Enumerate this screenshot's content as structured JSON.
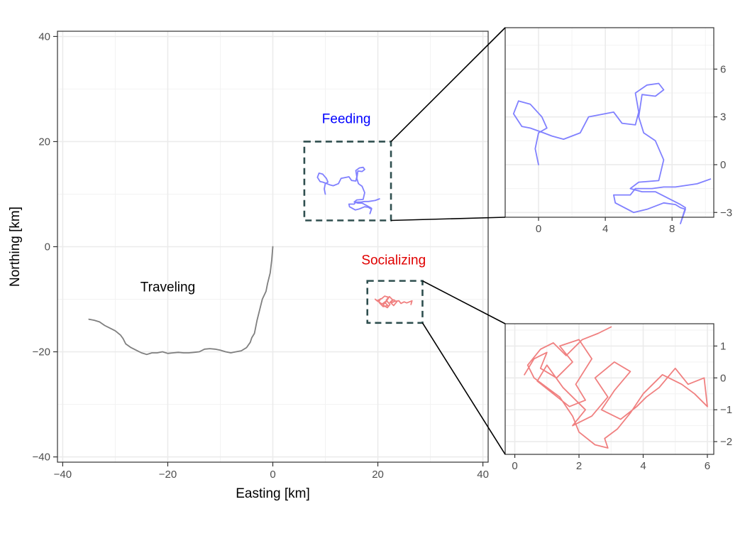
{
  "chart_data": [
    {
      "type": "line",
      "panel": "main",
      "xlabel": "Easting [km]",
      "ylabel": "Northing [km]",
      "xlim": [
        -41,
        41
      ],
      "ylim": [
        -41,
        41
      ],
      "x_ticks": [
        -40,
        -20,
        0,
        20,
        40
      ],
      "y_ticks": [
        -40,
        -20,
        0,
        20,
        40
      ],
      "x_tick_labels": [
        "−40",
        "−20",
        "0",
        "20",
        "40"
      ],
      "y_tick_labels": [
        "−40",
        "−20",
        "0",
        "20",
        "40"
      ],
      "grid": true,
      "annotations": [
        {
          "text": "Traveling",
          "x": -20,
          "y": -8.5,
          "color": "#000000"
        },
        {
          "text": "Feeding",
          "x": 14,
          "y": 23.5,
          "color": "#0000ff"
        },
        {
          "text": "Socializing",
          "x": 23,
          "y": -3.4,
          "color": "#e00000"
        }
      ],
      "zoom_boxes": [
        {
          "x0": 6,
          "x1": 22.5,
          "y0": 5,
          "y1": 20,
          "color": "#2f4f4f"
        },
        {
          "x0": 18,
          "x1": 28.5,
          "y0": -14.5,
          "y1": -6.5,
          "color": "#2f4f4f"
        }
      ],
      "series": [
        {
          "color": "#7f7f7f",
          "x": [
            0,
            -0.2,
            -0.5,
            -1.0,
            -1.3,
            -2.0,
            -2.5,
            -3.0,
            -3.3,
            -3.5,
            -4.0,
            -4.3,
            -5.0,
            -6.0,
            -7.0,
            -8.0,
            -9.0,
            -10.0,
            -11.0,
            -12.0,
            -13.0,
            -14.0,
            -15.0,
            -16.0,
            -17.0,
            -18.0,
            -19.0,
            -20.0,
            -21.0,
            -22.0,
            -23.0,
            -24.0,
            -25.0,
            -26.0,
            -27.0,
            -28.0,
            -28.5,
            -29.0,
            -30.0,
            -31.0,
            -32.0,
            -33.0,
            -34.0,
            -35.0
          ],
          "y": [
            0,
            -2.5,
            -5.0,
            -7.0,
            -8.5,
            -10.0,
            -12.0,
            -14.0,
            -15.5,
            -16.5,
            -17.3,
            -18.2,
            -19.2,
            -19.8,
            -20.0,
            -20.2,
            -20.0,
            -19.7,
            -19.5,
            -19.4,
            -19.5,
            -20.0,
            -20.1,
            -20.2,
            -20.2,
            -20.1,
            -20.2,
            -20.3,
            -20.0,
            -20.2,
            -20.2,
            -20.5,
            -20.2,
            -19.7,
            -19.2,
            -18.5,
            -17.5,
            -16.8,
            -16.0,
            -15.5,
            -15.0,
            -14.3,
            -14.0,
            -13.8
          ]
        },
        {
          "color": "#8080ff",
          "x": [
            10,
            9.8,
            10,
            10.5,
            10.2,
            9.5,
            8.8,
            8.5,
            9.0,
            9.5,
            10.3,
            10.8,
            11.5,
            12.5,
            13.0,
            14.5,
            15.0,
            15.8,
            16.0,
            15.8,
            16.5,
            17.2,
            17.5,
            17.0,
            16.2,
            16.0,
            16.3,
            17.0,
            17.5,
            17.2,
            16.0,
            15.5,
            16.2,
            17.0,
            18.5,
            18.8,
            18.5,
            18.8,
            18.5,
            18.2,
            17.5,
            16.5,
            15.7,
            14.6,
            14.5,
            15.5,
            15.8,
            16.2,
            16.8,
            17.5,
            18.2,
            19.5,
            20.3
          ],
          "y": [
            10.0,
            11.0,
            12.0,
            12.3,
            13.0,
            13.8,
            14.0,
            13.2,
            12.4,
            12.3,
            12.0,
            11.8,
            11.6,
            12.0,
            13.0,
            13.3,
            12.6,
            12.5,
            13.3,
            14.5,
            15.0,
            15.1,
            14.7,
            14.3,
            14.4,
            13.0,
            12.0,
            11.5,
            10.3,
            9.0,
            8.9,
            8.5,
            8.3,
            8.3,
            7.5,
            7.3,
            6.3,
            7.2,
            7.3,
            7.5,
            7.6,
            7.2,
            7.0,
            7.6,
            8.1,
            8.1,
            8.5,
            8.5,
            8.5,
            8.6,
            8.6,
            8.8,
            9.1
          ]
        },
        {
          "color": "#f08080",
          "x": [
            19.5,
            20.0,
            20.5,
            20.2,
            20.8,
            21.5,
            21.0,
            21.8,
            22.3,
            21.6,
            22.0,
            21.3,
            20.7,
            20.0,
            20.4,
            21.0,
            21.9,
            21.4,
            22.2,
            22.8,
            22.3,
            23.0,
            23.6,
            23.0,
            22.5,
            23.2,
            24.0,
            24.4,
            25.0,
            25.5,
            26.0,
            26.5,
            26.3
          ],
          "y": [
            -10.0,
            -10.4,
            -9.9,
            -10.5,
            -10.9,
            -10.4,
            -11.1,
            -11.6,
            -11.0,
            -10.2,
            -9.6,
            -9.4,
            -9.9,
            -10.2,
            -10.8,
            -11.4,
            -11.2,
            -10.7,
            -9.5,
            -10.1,
            -10.6,
            -10.1,
            -10.5,
            -11.2,
            -10.7,
            -10.4,
            -10.3,
            -10.8,
            -10.5,
            -10.7,
            -10.5,
            -10.3,
            -11.0
          ]
        }
      ]
    },
    {
      "type": "line",
      "panel": "inset-feeding",
      "xlim": [
        -2,
        10.5
      ],
      "ylim": [
        -3.3,
        8.6
      ],
      "x_ticks": [
        0,
        4,
        8
      ],
      "y_ticks": [
        -3,
        0,
        3,
        6
      ],
      "x_tick_labels": [
        "0",
        "4",
        "8"
      ],
      "y_tick_labels": [
        "−3",
        "0",
        "3",
        "6"
      ],
      "y_axis_side": "right",
      "grid": true,
      "series": [
        {
          "color": "#8080ff",
          "x": [
            0,
            -0.2,
            0,
            0.5,
            0.2,
            -0.5,
            -1.2,
            -1.5,
            -1.0,
            -0.5,
            0.3,
            0.8,
            1.5,
            2.5,
            3.0,
            4.5,
            5.0,
            5.8,
            6.0,
            5.8,
            6.5,
            7.2,
            7.5,
            7.0,
            6.2,
            6.0,
            6.3,
            7.0,
            7.5,
            7.2,
            6.0,
            5.5,
            6.2,
            7.0,
            8.5,
            8.8,
            8.5,
            8.8,
            8.5,
            8.2,
            7.5,
            6.5,
            5.7,
            4.6,
            4.5,
            5.5,
            5.8,
            6.2,
            6.8,
            7.5,
            8.2,
            9.5,
            10.3
          ],
          "y": [
            0,
            1.0,
            2.0,
            2.3,
            3.0,
            3.8,
            4.0,
            3.2,
            2.4,
            2.3,
            2.0,
            1.8,
            1.6,
            2.0,
            3.0,
            3.3,
            2.6,
            2.5,
            3.3,
            4.5,
            5.0,
            5.1,
            4.7,
            4.3,
            4.4,
            3.0,
            2.0,
            1.5,
            0.3,
            -1.0,
            -1.1,
            -1.5,
            -1.7,
            -1.7,
            -2.5,
            -2.7,
            -3.7,
            -2.8,
            -2.7,
            -2.5,
            -2.4,
            -2.8,
            -3.0,
            -2.4,
            -1.9,
            -1.9,
            -1.5,
            -1.5,
            -1.5,
            -1.4,
            -1.4,
            -1.2,
            -0.9
          ]
        }
      ]
    },
    {
      "type": "line",
      "panel": "inset-socializing",
      "xlim": [
        -0.3,
        6.2
      ],
      "ylim": [
        -2.4,
        1.7
      ],
      "x_ticks": [
        0,
        2,
        4,
        6
      ],
      "y_ticks": [
        -2,
        -1,
        0,
        1
      ],
      "x_tick_labels": [
        "0",
        "2",
        "4",
        "6"
      ],
      "y_tick_labels": [
        "−2",
        "−1",
        "0",
        "1"
      ],
      "y_axis_side": "right",
      "grid": true,
      "series": [
        {
          "color": "#f08080",
          "x": [
            0.3,
            0.6,
            1.0,
            0.8,
            1.3,
            1.8,
            1.4,
            2.0,
            2.4,
            1.9,
            2.2,
            1.7,
            1.2,
            0.7,
            1.0,
            1.5,
            2.2,
            1.8,
            2.4,
            2.9,
            2.5,
            3.1,
            3.6,
            3.1,
            2.7,
            3.3,
            3.8,
            4.1,
            4.5,
            5.0,
            5.4,
            5.9,
            6.0,
            5.6,
            5.2,
            4.6,
            4.0,
            3.6,
            3.2,
            2.8,
            2.9,
            2.5,
            2.0,
            1.8,
            1.4,
            1.0,
            0.6,
            0.4,
            0.8,
            1.2,
            1.6,
            2.1,
            2.6,
            3.0
          ],
          "y": [
            0.1,
            0.6,
            0.8,
            0.3,
            0.0,
            0.5,
            1.0,
            1.2,
            0.6,
            -0.2,
            -0.7,
            -0.9,
            -0.5,
            -0.1,
            0.4,
            -0.3,
            -1.0,
            -1.5,
            -1.2,
            -0.6,
            0.0,
            0.5,
            0.2,
            -0.4,
            -1.0,
            -1.3,
            -0.9,
            -0.6,
            -0.3,
            0.3,
            -0.2,
            0.0,
            -0.9,
            -0.5,
            -0.2,
            0.1,
            -0.5,
            -1.1,
            -1.6,
            -1.9,
            -2.2,
            -2.1,
            -1.7,
            -1.2,
            -0.6,
            -0.3,
            0.0,
            0.4,
            0.9,
            1.1,
            0.7,
            1.2,
            1.4,
            1.6
          ]
        }
      ]
    }
  ]
}
